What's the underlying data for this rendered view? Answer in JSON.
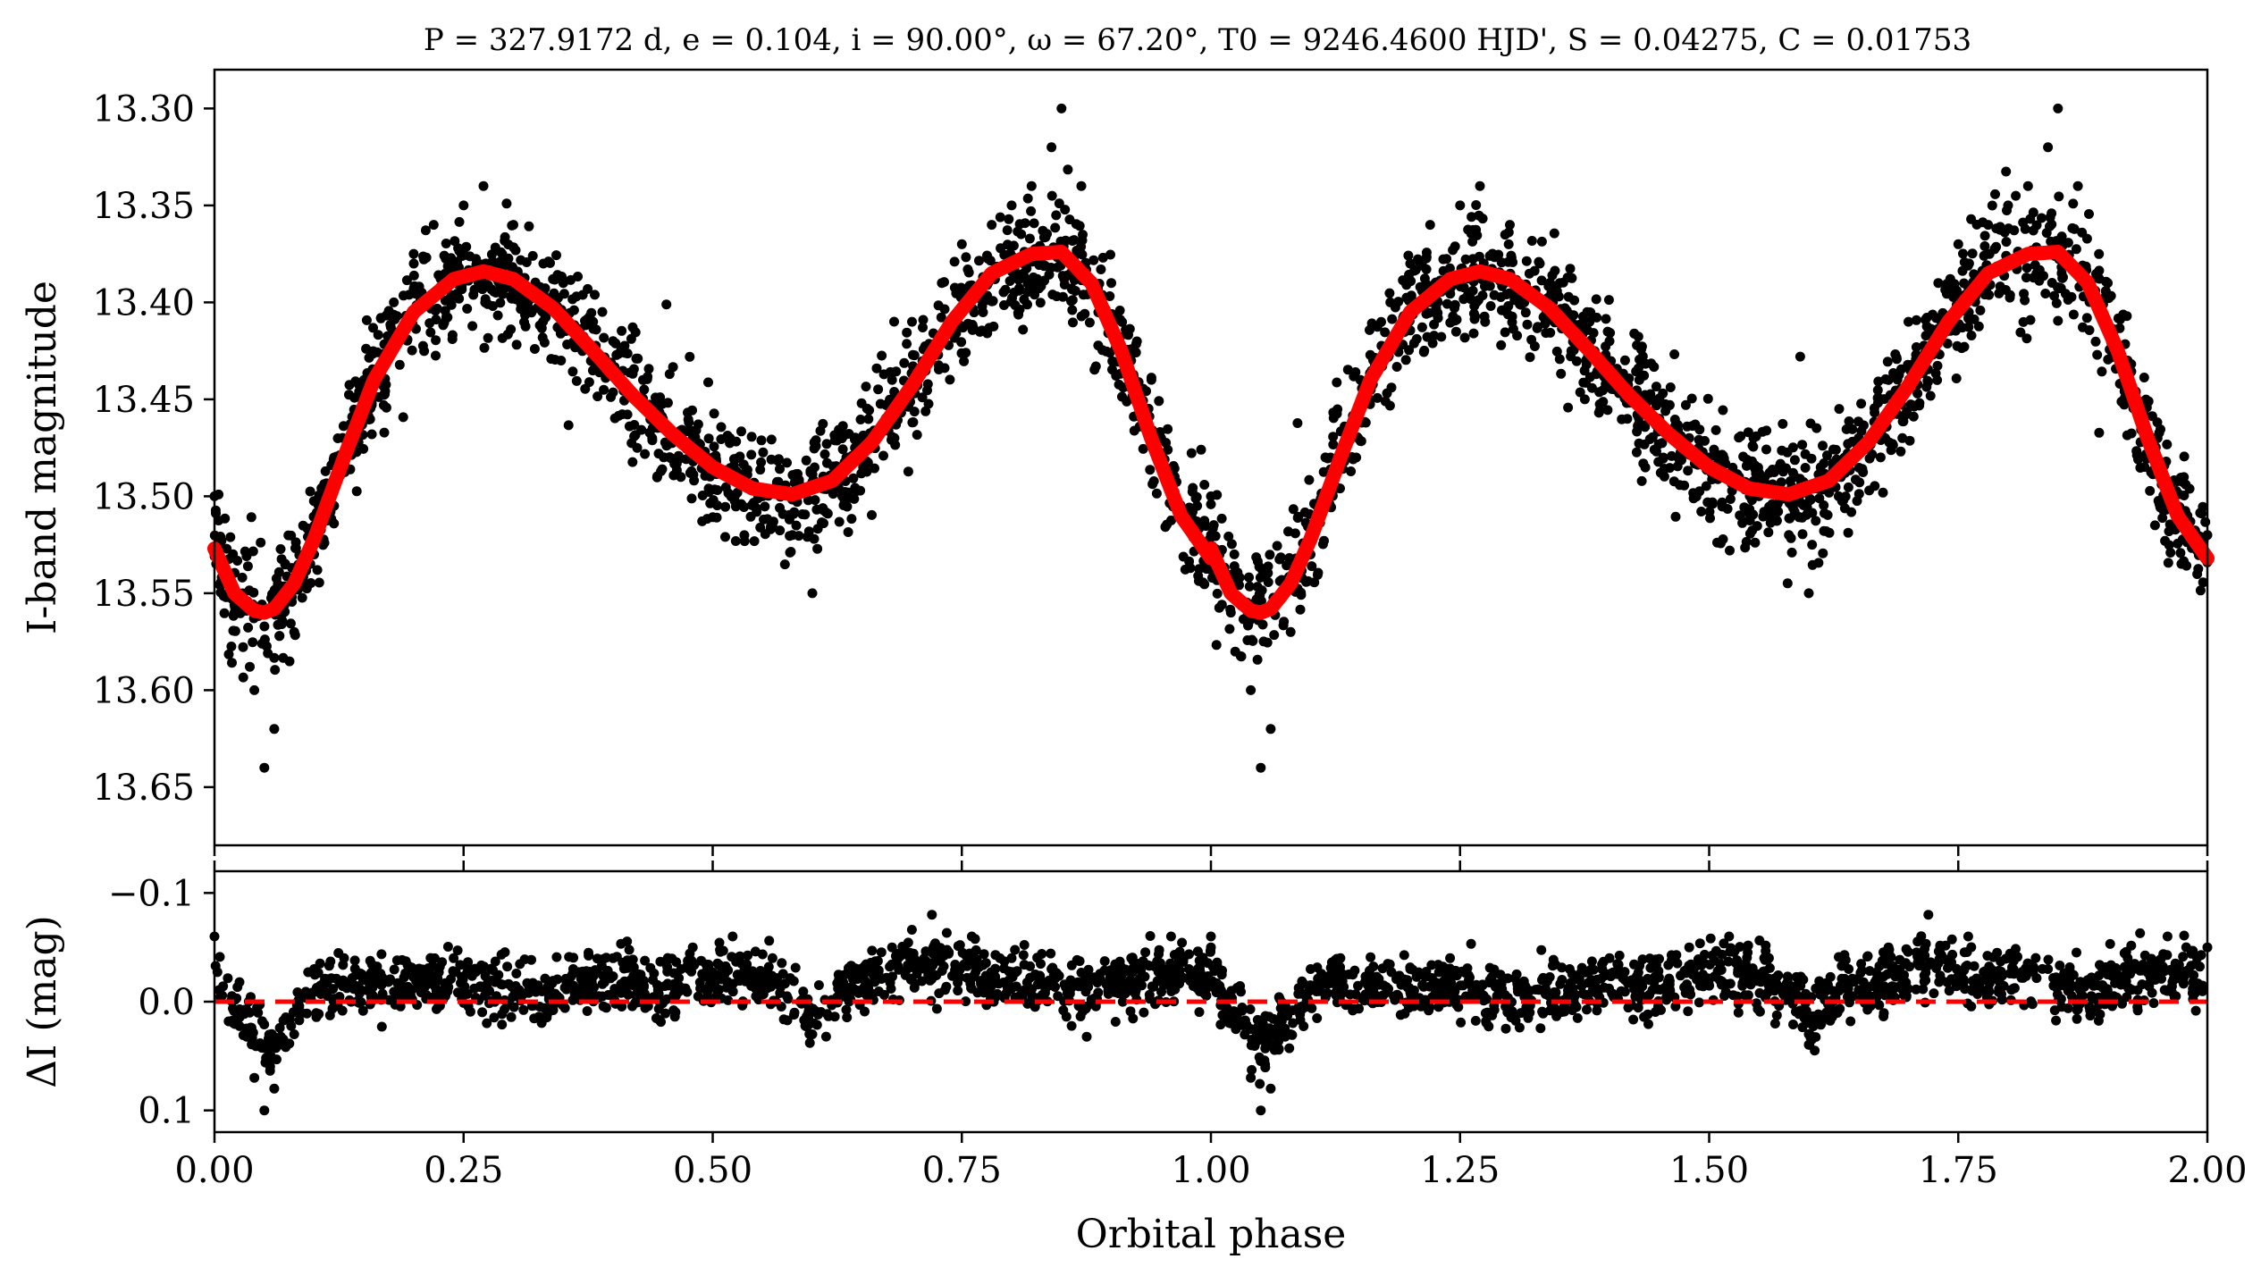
{
  "chart_data": [
    {
      "type": "scatter",
      "panel": "top",
      "title": "P = 327.9172 d, e = 0.104, i = 90.00°, ω = 67.20°, T0 = 9246.4600 HJD', S = 0.04275, C = 0.01753",
      "ylabel": "I-band magnitude",
      "xlim": [
        0.0,
        2.0
      ],
      "ylim": [
        13.68,
        13.28
      ],
      "y_inverted": true,
      "yticks": [
        "13.30",
        "13.35",
        "13.40",
        "13.45",
        "13.50",
        "13.55",
        "13.60",
        "13.65"
      ],
      "yticks_values": [
        13.3,
        13.35,
        13.4,
        13.45,
        13.5,
        13.55,
        13.6,
        13.65
      ],
      "grid": false,
      "series": [
        {
          "kind": "points",
          "color": "#000000",
          "x": [
            0.0,
            0.02,
            0.04,
            0.05,
            0.06,
            0.08,
            0.1,
            0.12,
            0.15,
            0.18,
            0.2,
            0.22,
            0.25,
            0.27,
            0.3,
            0.33,
            0.35,
            0.38,
            0.4,
            0.43,
            0.45,
            0.48,
            0.5,
            0.53,
            0.55,
            0.58,
            0.6,
            0.63,
            0.65,
            0.68,
            0.7,
            0.73,
            0.75,
            0.78,
            0.8,
            0.82,
            0.84,
            0.85,
            0.87,
            0.9,
            0.92,
            0.95,
            0.98,
            1.0
          ],
          "y": [
            13.5,
            13.56,
            13.6,
            13.64,
            13.62,
            13.57,
            13.53,
            13.48,
            13.44,
            13.4,
            13.38,
            13.36,
            13.35,
            13.34,
            13.36,
            13.38,
            13.39,
            13.41,
            13.42,
            13.44,
            13.46,
            13.47,
            13.48,
            13.49,
            13.5,
            13.52,
            13.55,
            13.5,
            13.47,
            13.44,
            13.41,
            13.39,
            13.37,
            13.36,
            13.35,
            13.34,
            13.32,
            13.3,
            13.34,
            13.39,
            13.43,
            13.47,
            13.51,
            13.52
          ]
        },
        {
          "kind": "line",
          "color": "#ff0000",
          "x": [
            0.0,
            0.02,
            0.04,
            0.05,
            0.06,
            0.08,
            0.1,
            0.13,
            0.16,
            0.2,
            0.24,
            0.27,
            0.3,
            0.34,
            0.38,
            0.42,
            0.46,
            0.5,
            0.54,
            0.58,
            0.62,
            0.66,
            0.7,
            0.74,
            0.78,
            0.82,
            0.85,
            0.88,
            0.91,
            0.94,
            0.97,
            1.0
          ],
          "y": [
            13.527,
            13.55,
            13.559,
            13.56,
            13.558,
            13.545,
            13.522,
            13.48,
            13.44,
            13.405,
            13.388,
            13.384,
            13.388,
            13.403,
            13.425,
            13.448,
            13.468,
            13.485,
            13.496,
            13.499,
            13.492,
            13.472,
            13.443,
            13.41,
            13.385,
            13.375,
            13.374,
            13.39,
            13.425,
            13.47,
            13.51,
            13.532
          ]
        }
      ]
    },
    {
      "type": "scatter",
      "panel": "bottom",
      "xlabel": "Orbital phase",
      "ylabel": "ΔI (mag)",
      "xlim": [
        0.0,
        2.0
      ],
      "ylim": [
        0.12,
        -0.12
      ],
      "y_inverted": true,
      "xticks": [
        "0.00",
        "0.25",
        "0.50",
        "0.75",
        "1.00",
        "1.25",
        "1.50",
        "1.75",
        "2.00"
      ],
      "xticks_values": [
        0.0,
        0.25,
        0.5,
        0.75,
        1.0,
        1.25,
        1.5,
        1.75,
        2.0
      ],
      "yticks": [
        "−0.1",
        "0.0",
        "0.1"
      ],
      "yticks_values": [
        -0.1,
        0.0,
        0.1
      ],
      "grid": false,
      "series": [
        {
          "kind": "points",
          "color": "#000000",
          "x": [
            0.0,
            0.02,
            0.04,
            0.05,
            0.06,
            0.08,
            0.1,
            0.13,
            0.16,
            0.2,
            0.24,
            0.28,
            0.32,
            0.36,
            0.4,
            0.44,
            0.48,
            0.52,
            0.56,
            0.6,
            0.64,
            0.68,
            0.72,
            0.76,
            0.8,
            0.84,
            0.88,
            0.92,
            0.96,
            1.0
          ],
          "y": [
            -0.06,
            0.02,
            0.07,
            0.1,
            0.08,
            0.03,
            -0.03,
            -0.04,
            -0.02,
            -0.03,
            -0.04,
            -0.02,
            -0.01,
            -0.03,
            -0.04,
            -0.02,
            -0.05,
            -0.06,
            -0.04,
            0.03,
            -0.03,
            -0.05,
            -0.08,
            -0.06,
            -0.04,
            -0.03,
            -0.02,
            -0.04,
            -0.06,
            -0.05
          ]
        },
        {
          "kind": "dashed-line",
          "color": "#ff0000",
          "x": [
            0.0,
            2.0
          ],
          "y": [
            0.0,
            0.0
          ]
        }
      ]
    }
  ]
}
